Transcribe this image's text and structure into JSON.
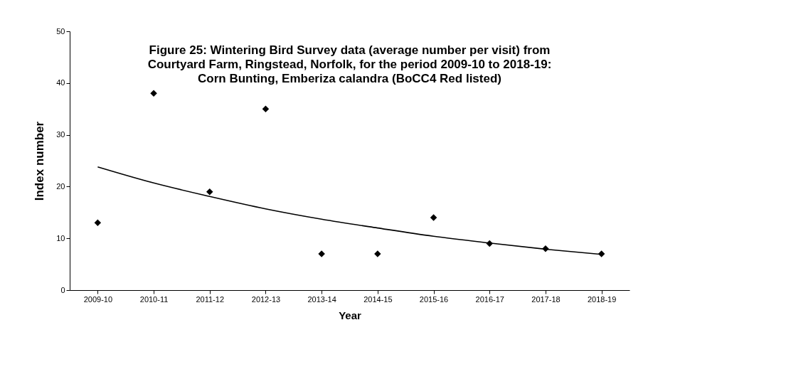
{
  "chart_data": {
    "type": "scatter",
    "title": [
      "Figure 25: Wintering Bird Survey data (average number per visit) from",
      "Courtyard Farm, Ringstead, Norfolk, for the period 2009-10 to 2018-19:",
      "Corn Bunting, Emberiza calandra (BoCC4 Red listed)"
    ],
    "xlabel": "Year",
    "ylabel": "Index number",
    "categories": [
      "2009-10",
      "2010-11",
      "2011-12",
      "2012-13",
      "2013-14",
      "2014-15",
      "2015-16",
      "2016-17",
      "2017-18",
      "2018-19"
    ],
    "series": [
      {
        "marker": "diamond",
        "color": "#000000",
        "values": [
          13,
          38,
          19,
          35,
          7,
          7,
          14,
          9,
          8,
          7
        ]
      },
      {
        "type": "line",
        "color": "#000000",
        "values": [
          23.8,
          20.7,
          18.1,
          15.7,
          13.7,
          12.0,
          10.4,
          9.1,
          7.9,
          6.9
        ]
      }
    ],
    "ylim": [
      0,
      50
    ],
    "yticks": [
      0,
      10,
      20,
      30,
      40,
      50
    ],
    "grid": false
  }
}
